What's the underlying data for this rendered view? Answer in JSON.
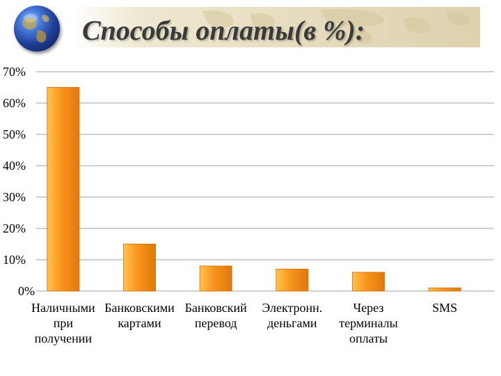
{
  "title": "Способы оплаты(в %):",
  "chart_data": {
    "type": "bar",
    "categories": [
      [
        "Наличными",
        "при",
        "получении"
      ],
      [
        "Банковскими",
        "картами"
      ],
      [
        "Банковский",
        "перевод"
      ],
      [
        "Электронн.",
        "деньгами"
      ],
      [
        "Через",
        "терминалы",
        "оплаты"
      ],
      [
        "SMS"
      ]
    ],
    "values": [
      65,
      15,
      8,
      7,
      6,
      1
    ],
    "ylim": [
      0,
      70
    ],
    "yticks": [
      "0%",
      "10%",
      "20%",
      "30%",
      "40%",
      "50%",
      "60%",
      "70%"
    ],
    "grid": true,
    "colors": {
      "bar_light": "#ffc34d",
      "bar_mid": "#f7941d",
      "bar_dark": "#e0780a",
      "grid": "#a0a0a0"
    }
  }
}
